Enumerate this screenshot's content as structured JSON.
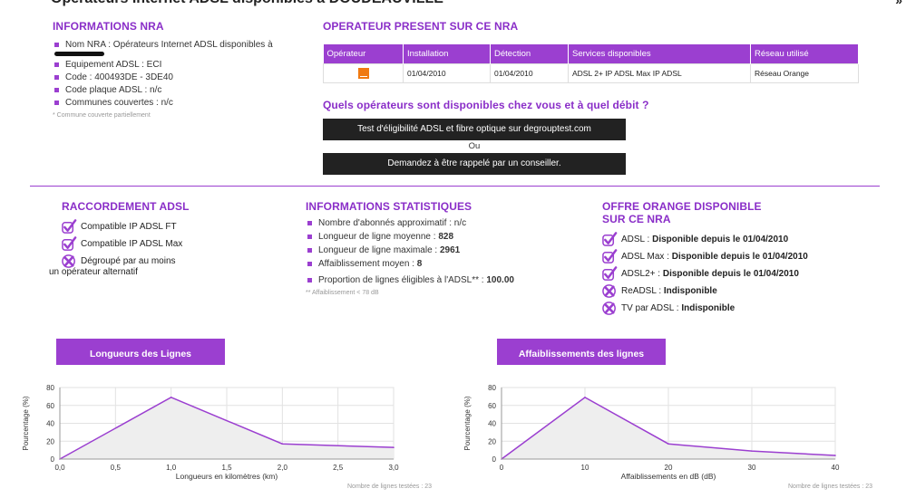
{
  "page": {
    "title": "Opérateurs Internet ADSL disponibles à DOUDEAUVILLE",
    "right_mark": "»"
  },
  "info_nra": {
    "heading": "INFORMATIONS NRA",
    "nom_nra": "Nom NRA : Opérateurs Internet ADSL disponibles à",
    "items": [
      "Equipement ADSL : ECI",
      "Code : 400493DE - 3DE40",
      "Code plaque ADSL : n/c",
      "Communes couvertes : n/c"
    ],
    "note": "* Commune couverte partiellement"
  },
  "operateur": {
    "heading": "OPERATEUR PRESENT SUR CE NRA",
    "columns": [
      "Opérateur",
      "Installation",
      "Détection",
      "Services disponibles",
      "Réseau utilisé"
    ],
    "row": {
      "logo": "orange-logo",
      "installation": "01/04/2010",
      "detection": "01/04/2010",
      "services": "ADSL 2+ IP ADSL Max IP ADSL",
      "reseau": "Réseau Orange"
    }
  },
  "question": {
    "heading": "Quels opérateurs sont disponibles chez vous et à quel débit ?",
    "btn_test": "Test d'éligibilité ADSL et fibre optique sur degrouptest.com",
    "ou": "Ou",
    "btn_rappel": "Demandez à être rappelé par un conseiller."
  },
  "raccordement": {
    "heading": "RACCORDEMENT ADSL",
    "items": [
      {
        "text": "Compatible IP ADSL FT",
        "icon": "check-icon"
      },
      {
        "text": "Compatible IP ADSL Max",
        "icon": "check-icon"
      },
      {
        "text": "Dégroupé par au moins",
        "icon": "cross-icon"
      }
    ],
    "continuation": "un opérateur alternatif"
  },
  "stats": {
    "heading": "INFORMATIONS STATISTIQUES",
    "items": [
      {
        "label": "Nombre d'abonnés approximatif : ",
        "value": "n/c"
      },
      {
        "label": "Longueur de ligne moyenne : ",
        "value": "828"
      },
      {
        "label": "Longueur de ligne maximale : ",
        "value": "2961"
      },
      {
        "label": "Affaiblissement moyen : ",
        "value": "8"
      },
      {
        "label": "Proportion de lignes éligibles à l'ADSL** : ",
        "value": "100.00"
      }
    ],
    "note": "** Affaiblissement < 78 dB"
  },
  "offre": {
    "heading_1": "OFFRE ORANGE DISPONIBLE",
    "heading_2": "SUR CE NRA",
    "items": [
      {
        "label": "ADSL : ",
        "value": "Disponible depuis le 01/04/2010",
        "icon": "check-icon"
      },
      {
        "label": "ADSL Max : ",
        "value": "Disponible depuis le 01/04/2010",
        "icon": "check-icon"
      },
      {
        "label": "ADSL2+ : ",
        "value": "Disponible depuis le 01/04/2010",
        "icon": "check-icon"
      },
      {
        "label": "ReADSL : ",
        "value": "Indisponible",
        "icon": "cross-icon"
      },
      {
        "label": "TV par ADSL : ",
        "value": "Indisponible",
        "icon": "cross-icon"
      }
    ]
  },
  "colors": {
    "accent": "#9b3fd0",
    "line": "#9b3fd0",
    "area": "#eeeeee",
    "button": "#222222"
  },
  "charts_header": {
    "left_tab": "Longueurs des Lignes",
    "right_tab": "Affaiblissements des lignes",
    "left_footer": "Nombre de lignes testées : 23",
    "right_footer": "Nombre de lignes testées : 23"
  },
  "chart_data": [
    {
      "type": "area",
      "title": "Longueurs des Lignes",
      "xlabel": "Longueurs en kilomètres (km)",
      "ylabel": "Pourcentage (%)",
      "x": [
        0.0,
        1.0,
        2.0,
        3.0
      ],
      "y": [
        0,
        69,
        17,
        13
      ],
      "xlim": [
        0,
        3
      ],
      "ylim": [
        0,
        80
      ],
      "xticks": [
        "0,0",
        "0,5",
        "1,0",
        "1,5",
        "2,0",
        "2,5",
        "3,0"
      ],
      "xtick_values": [
        0,
        0.5,
        1,
        1.5,
        2,
        2.5,
        3
      ],
      "yticks": [
        0,
        20,
        40,
        60,
        80
      ],
      "grid": true
    },
    {
      "type": "area",
      "title": "Affaiblissements des lignes",
      "xlabel": "Affaiblissements en dB (dB)",
      "ylabel": "Pourcentage (%)",
      "x": [
        0,
        10,
        20,
        30,
        40
      ],
      "y": [
        0,
        69,
        17,
        9,
        4
      ],
      "xlim": [
        0,
        40
      ],
      "ylim": [
        0,
        80
      ],
      "xticks": [
        "0",
        "10",
        "20",
        "30",
        "40"
      ],
      "xtick_values": [
        0,
        10,
        20,
        30,
        40
      ],
      "yticks": [
        0,
        20,
        40,
        60,
        80
      ],
      "grid": true
    }
  ]
}
